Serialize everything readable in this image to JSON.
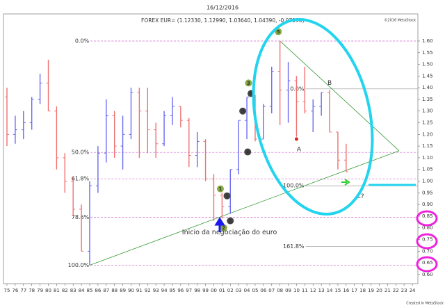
{
  "chart_data": {
    "type": "ohlc",
    "title": "16/12/2016",
    "subtitle": "FOREX EUR= (1.12330, 1.12990, 1.03640, 1.04390, -0.07990)",
    "watermark": "©2016 MetaStock",
    "credit": "Created in MetaStock",
    "x": [
      1975,
      1976,
      1977,
      1978,
      1979,
      1980,
      1981,
      1982,
      1983,
      1984,
      1985,
      1986,
      1987,
      1988,
      1989,
      1990,
      1991,
      1992,
      1993,
      1994,
      1995,
      1996,
      1997,
      1998,
      1999,
      2000,
      2001,
      2002,
      2003,
      2004,
      2005,
      2006,
      2007,
      2008,
      2009,
      2010,
      2011,
      2012,
      2013,
      2014,
      2015,
      2016
    ],
    "open": [
      1.36,
      1.2,
      1.22,
      1.25,
      1.35,
      1.42,
      1.3,
      1.1,
      1.0,
      0.88,
      0.7,
      0.98,
      1.12,
      1.28,
      1.15,
      1.2,
      1.38,
      1.3,
      1.22,
      1.16,
      1.28,
      1.32,
      1.26,
      1.11,
      1.17,
      1.01,
      0.94,
      0.89,
      1.05,
      1.26,
      1.36,
      1.18,
      1.32,
      1.47,
      1.39,
      1.43,
      1.34,
      1.3,
      1.32,
      1.38,
      1.21,
      1.09
    ],
    "high": [
      1.4,
      1.28,
      1.3,
      1.36,
      1.46,
      1.52,
      1.32,
      1.12,
      1.02,
      0.9,
      1.0,
      1.15,
      1.35,
      1.3,
      1.28,
      1.4,
      1.4,
      1.4,
      1.25,
      1.3,
      1.36,
      1.32,
      1.27,
      1.21,
      1.18,
      1.03,
      0.95,
      1.05,
      1.26,
      1.36,
      1.37,
      1.33,
      1.49,
      1.6,
      1.51,
      1.45,
      1.49,
      1.35,
      1.38,
      1.39,
      1.21,
      1.16
    ],
    "low": [
      1.15,
      1.16,
      1.18,
      1.22,
      1.33,
      1.3,
      1.05,
      0.95,
      0.85,
      0.7,
      0.64,
      0.95,
      1.08,
      1.1,
      1.05,
      1.18,
      1.1,
      1.12,
      1.1,
      1.15,
      1.24,
      1.23,
      1.06,
      1.06,
      1.0,
      0.83,
      0.84,
      0.86,
      1.03,
      1.18,
      1.17,
      1.18,
      1.29,
      1.24,
      1.25,
      1.19,
      1.29,
      1.21,
      1.28,
      1.21,
      1.05,
      1.04
    ],
    "close": [
      1.2,
      1.22,
      1.25,
      1.35,
      1.42,
      1.3,
      1.1,
      1.0,
      0.88,
      0.7,
      0.98,
      1.12,
      1.28,
      1.15,
      1.2,
      1.38,
      1.3,
      1.22,
      1.16,
      1.28,
      1.32,
      1.26,
      1.11,
      1.17,
      1.01,
      0.94,
      0.89,
      1.05,
      1.26,
      1.36,
      1.18,
      1.32,
      1.47,
      1.39,
      1.43,
      1.34,
      1.3,
      1.32,
      1.38,
      1.21,
      1.09,
      1.04
    ],
    "up_color": "#6a6af0",
    "down_color": "#f07070",
    "xlim": [
      1974.58,
      2024.67
    ],
    "ylim": [
      0.561,
      1.716
    ],
    "xticks": [
      {
        "value": 1975,
        "label": "75"
      },
      {
        "value": 1976,
        "label": "76"
      },
      {
        "value": 1977,
        "label": "77"
      },
      {
        "value": 1978,
        "label": "78"
      },
      {
        "value": 1979,
        "label": "79"
      },
      {
        "value": 1980,
        "label": "80"
      },
      {
        "value": 1981,
        "label": "81"
      },
      {
        "value": 1982,
        "label": "82"
      },
      {
        "value": 1983,
        "label": "83"
      },
      {
        "value": 1984,
        "label": "84"
      },
      {
        "value": 1985,
        "label": "85"
      },
      {
        "value": 1986,
        "label": "86"
      },
      {
        "value": 1987,
        "label": "87"
      },
      {
        "value": 1988,
        "label": "88"
      },
      {
        "value": 1989,
        "label": "89"
      },
      {
        "value": 1990,
        "label": "90"
      },
      {
        "value": 1991,
        "label": "91"
      },
      {
        "value": 1992,
        "label": "92"
      },
      {
        "value": 1993,
        "label": "93"
      },
      {
        "value": 1994,
        "label": "94"
      },
      {
        "value": 1995,
        "label": "95"
      },
      {
        "value": 1996,
        "label": "96"
      },
      {
        "value": 1997,
        "label": "97"
      },
      {
        "value": 1998,
        "label": "98"
      },
      {
        "value": 1999,
        "label": "99"
      },
      {
        "value": 2000,
        "label": "00"
      },
      {
        "value": 2001,
        "label": "01"
      },
      {
        "value": 2002,
        "label": "02"
      },
      {
        "value": 2003,
        "label": "03"
      },
      {
        "value": 2004,
        "label": "04"
      },
      {
        "value": 2005,
        "label": "05"
      },
      {
        "value": 2006,
        "label": "06"
      },
      {
        "value": 2007,
        "label": "07"
      },
      {
        "value": 2008,
        "label": "08"
      },
      {
        "value": 2009,
        "label": "09"
      },
      {
        "value": 2010,
        "label": "10"
      },
      {
        "value": 2011,
        "label": "11"
      },
      {
        "value": 2012,
        "label": "12"
      },
      {
        "value": 2013,
        "label": "13"
      },
      {
        "value": 2014,
        "label": "14"
      },
      {
        "value": 2015,
        "label": "15"
      },
      {
        "value": 2016,
        "label": "16"
      },
      {
        "value": 2017,
        "label": "17"
      },
      {
        "value": 2018,
        "label": "18"
      },
      {
        "value": 2019,
        "label": "19"
      },
      {
        "value": 2020,
        "label": "20"
      },
      {
        "value": 2021,
        "label": "21"
      },
      {
        "value": 2022,
        "label": "22"
      },
      {
        "value": 2023,
        "label": "23"
      },
      {
        "value": 2024,
        "label": "24"
      }
    ],
    "yticks": [
      {
        "value": 0.6,
        "label": "0.60"
      },
      {
        "value": 0.65,
        "label": "0.65"
      },
      {
        "value": 0.7,
        "label": "0.70"
      },
      {
        "value": 0.75,
        "label": "0.75"
      },
      {
        "value": 0.8,
        "label": "0.80"
      },
      {
        "value": 0.85,
        "label": "0.85"
      },
      {
        "value": 0.9,
        "label": "0.90"
      },
      {
        "value": 0.95,
        "label": "0.95"
      },
      {
        "value": 1.0,
        "label": "1.00"
      },
      {
        "value": 1.05,
        "label": "1.05"
      },
      {
        "value": 1.1,
        "label": "1.10"
      },
      {
        "value": 1.15,
        "label": "1.15"
      },
      {
        "value": 1.2,
        "label": "1.20"
      },
      {
        "value": 1.25,
        "label": "1.25"
      },
      {
        "value": 1.3,
        "label": "1.30"
      },
      {
        "value": 1.35,
        "label": "1.35"
      },
      {
        "value": 1.4,
        "label": "1.40"
      },
      {
        "value": 1.45,
        "label": "1.45"
      },
      {
        "value": 1.5,
        "label": "1.50"
      },
      {
        "value": 1.55,
        "label": "1.55"
      },
      {
        "value": 1.6,
        "label": "1.60"
      }
    ],
    "fib_groups": [
      {
        "x_start": 1985.1,
        "color": "#cc66cc",
        "levels": [
          {
            "label": "0.0%",
            "value": 1.6
          },
          {
            "label": "50.0%",
            "value": 1.123
          },
          {
            "label": "61.8%",
            "value": 1.01
          },
          {
            "label": "78.6%",
            "value": 0.845
          },
          {
            "label": "100.0%",
            "value": 0.64
          }
        ]
      },
      {
        "x_start": 2011.1,
        "color": "#999999",
        "levels": [
          {
            "label": "0.0%",
            "value": 1.395
          },
          {
            "label": "100.0%",
            "value": 0.98
          },
          {
            "label": "161.8%",
            "value": 0.72
          }
        ]
      }
    ],
    "trendlines": [
      {
        "color": "#339933",
        "x": [
          1985,
          2022.4
        ],
        "y": [
          0.64,
          1.13
        ]
      },
      {
        "color": "#339933",
        "x": [
          2008,
          2022.4
        ],
        "y": [
          1.6,
          1.13
        ]
      }
    ],
    "annotations": [
      {
        "kind": "circle",
        "text": "1",
        "color": "#88aa44",
        "x": 2000.8,
        "y": 0.967
      },
      {
        "kind": "circle",
        "text": "1",
        "color": "#444444",
        "x": 2001.6,
        "y": 0.937
      },
      {
        "kind": "circle",
        "text": "2",
        "color": "#88aa44",
        "x": 2001.2,
        "y": 0.8
      },
      {
        "kind": "circle",
        "text": "2",
        "color": "#444444",
        "x": 2002.0,
        "y": 0.83
      },
      {
        "kind": "circle",
        "text": "3",
        "color": "#444444",
        "x": 2003.5,
        "y": 1.3
      },
      {
        "kind": "circle",
        "text": "3",
        "color": "#88aa44",
        "x": 2004.2,
        "y": 1.42
      },
      {
        "kind": "circle",
        "text": "4",
        "color": "#444444",
        "x": 2004.1,
        "y": 1.125
      },
      {
        "kind": "circle",
        "text": "5",
        "color": "#444444",
        "x": 2004.5,
        "y": 1.375
      },
      {
        "kind": "circle",
        "text": "5",
        "color": "#88aa44",
        "x": 2007.8,
        "y": 1.64
      },
      {
        "kind": "text",
        "text": "A",
        "color": "#dd2222",
        "x": 2010.3,
        "y": 1.135
      },
      {
        "kind": "text",
        "text": "B",
        "color": "#dd2222",
        "x": 2014.0,
        "y": 1.42
      },
      {
        "kind": "text",
        "text": "C?",
        "color": "#dd2222",
        "x": 2017.7,
        "y": 0.935
      },
      {
        "kind": "text",
        "text": "Inicio da negociação do euro",
        "color": "#1a1aaa",
        "x": 2001.9,
        "y": 0.78
      }
    ]
  }
}
